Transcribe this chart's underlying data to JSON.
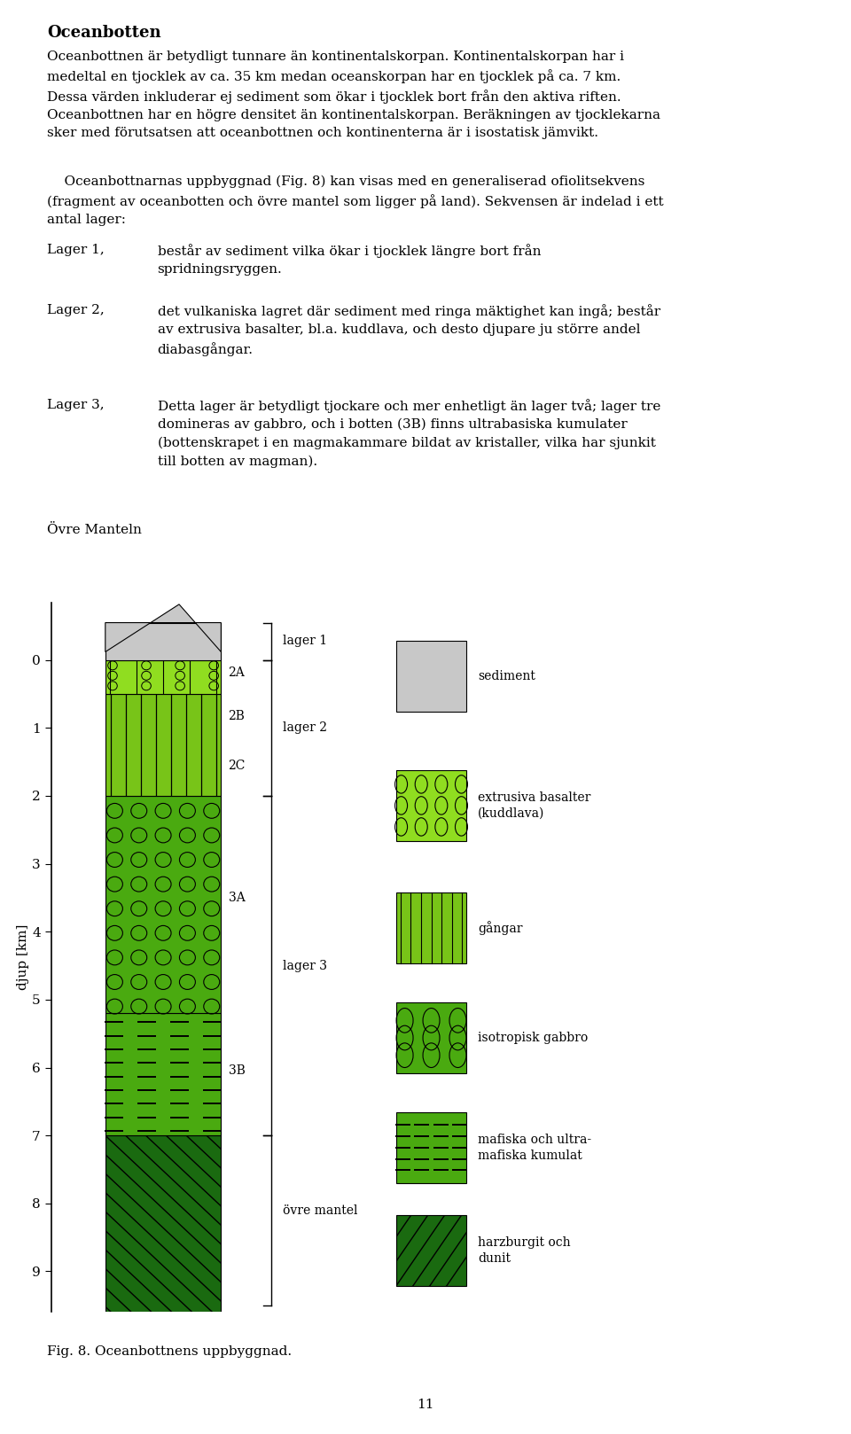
{
  "title": "Oceanbotten",
  "para1": "Oceanbottnen är betydligt tunnare än kontinentalskorpan. Kontinentalskorpan har i medeltal en tjocklek av ca. 35 km medan oceanskorpan har en tjocklek på ca. 7 km. Dessa värden inkluderar ej sediment som ökar i tjocklek bort från den aktiva riften. Oceanbottnen har en högre densitet än kontinentalskorpan. Beräkningen av tjocklekarna sker med förutsatsen att oceanbottnen och kontinenterna är i isostatisk jämvikt.",
  "para2": "    Oceanbottnarnas uppbyggnad (Fig. 8) kan visas med en generaliserad ofiolitsekvens (fragment av oceanbotten och övre mantel som ligger på land). Sekvensen är indelad i ett antal lager:",
  "layer1_label": "Lager 1,",
  "layer1_text": "består av sediment vilka ökar i tjocklek längre bort från\nspridningsryggen.",
  "layer2_label": "Lager 2,",
  "layer2_text": "det vulkaniska lagret där sediment med ringa mäktighet kan ingå; består\nav extrusiva basalter, bl.a. kuddlava, och desto djupare ju större andel\ndiabasgångar.",
  "layer3_label": "Lager 3,",
  "layer3_text": "Detta lager är betydligt tjockare och mer enhetligt än lager två; lager tre\ndomineras av gabbro, och i botten (3B) finns ultrabasiska kumulater\n(bottenskrapet i en magmakammare bildat av kristaller, vilka har sjunkit\ntill botten av magman).",
  "ovre_label": "Övre Manteln",
  "fig_caption": "Fig. 8. Oceanbottnens uppbyggnad.",
  "page_number": "11",
  "bg_color": "#ffffff",
  "sediment_color": "#c8c8c8",
  "layer2A_color": "#90dd20",
  "layer2BC_color": "#78c418",
  "layer3A_color": "#4aaa10",
  "layer3B_color": "#4aaa10",
  "mantle_color": "#1a6a10"
}
